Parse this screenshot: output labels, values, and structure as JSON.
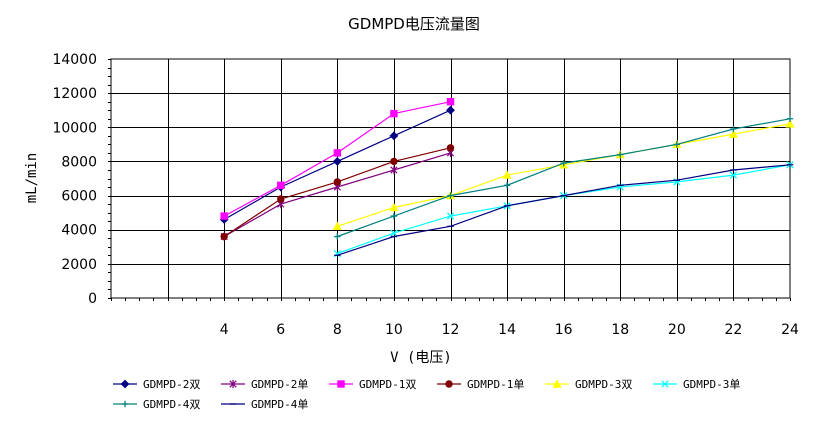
{
  "chart_data": {
    "type": "line",
    "title": "GDMPD电压流量图",
    "xlabel": "V (电压)",
    "ylabel": "mL/min",
    "xlim": [
      0,
      24
    ],
    "ylim": [
      0,
      14000
    ],
    "x_ticks": [
      4,
      6,
      8,
      10,
      12,
      14,
      16,
      18,
      20,
      22,
      24
    ],
    "y_ticks": [
      0,
      2000,
      4000,
      6000,
      8000,
      10000,
      12000,
      14000
    ],
    "grid": true,
    "legend_position": "bottom",
    "series": [
      {
        "name": "GDMPD-2双",
        "color": "#000080",
        "marker": "diamond",
        "x": [
          4,
          6,
          8,
          10,
          12
        ],
        "y": [
          4600,
          6500,
          8000,
          9500,
          11000
        ]
      },
      {
        "name": "GDMPD-2单",
        "color": "#800080",
        "marker": "star",
        "x": [
          4,
          6,
          8,
          10,
          12
        ],
        "y": [
          3600,
          5500,
          6500,
          7500,
          8500
        ]
      },
      {
        "name": "GDMPD-1双",
        "color": "#ff00ff",
        "marker": "square",
        "x": [
          4,
          6,
          8,
          10,
          12
        ],
        "y": [
          4800,
          6600,
          8500,
          10800,
          11500
        ]
      },
      {
        "name": "GDMPD-1单",
        "color": "#800000",
        "marker": "circle",
        "x": [
          4,
          6,
          8,
          10,
          12
        ],
        "y": [
          3600,
          5800,
          6800,
          8000,
          8800
        ]
      },
      {
        "name": "GDMPD-3双",
        "color": "#ffff00",
        "marker": "triangle",
        "x": [
          8,
          10,
          12,
          14,
          16,
          18,
          20,
          22,
          24
        ],
        "y": [
          4200,
          5300,
          6000,
          7200,
          7800,
          8400,
          9000,
          9600,
          10200
        ]
      },
      {
        "name": "GDMPD-3单",
        "color": "#00ffff",
        "marker": "x",
        "x": [
          8,
          10,
          12,
          14,
          16,
          18,
          20,
          22,
          24
        ],
        "y": [
          2600,
          3800,
          4800,
          5400,
          6000,
          6500,
          6800,
          7200,
          7800
        ]
      },
      {
        "name": "GDMPD-4双",
        "color": "#008080",
        "marker": "plus",
        "x": [
          8,
          10,
          12,
          14,
          16,
          18,
          20,
          22,
          24
        ],
        "y": [
          3600,
          4800,
          6000,
          6600,
          7900,
          8400,
          9000,
          9900,
          10500
        ]
      },
      {
        "name": "GDMPD-4单",
        "color": "#000080",
        "marker": "dash",
        "x": [
          8,
          10,
          12,
          14,
          16,
          18,
          20,
          22,
          24
        ],
        "y": [
          2500,
          3600,
          4200,
          5400,
          6000,
          6600,
          6900,
          7500,
          7800
        ]
      }
    ]
  }
}
